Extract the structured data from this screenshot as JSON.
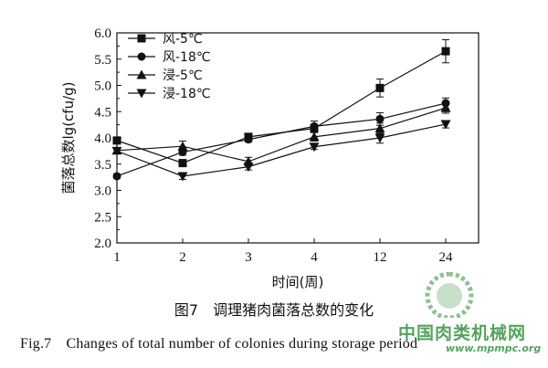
{
  "caption": {
    "cn": "图7　调理猪肉菌落总数的变化",
    "en": "Fig.7　Changes of total number of colonies during storage period"
  },
  "watermark": {
    "text": "中国肉类机械网",
    "url": "www.mpmpc.org",
    "logo_text": "MPMPC",
    "color": "#2f8f3a"
  },
  "chart_data": {
    "type": "line",
    "xlabel": "时间(周)",
    "ylabel": "菌落总数lg(cfu/g)",
    "categories": [
      "1",
      "2",
      "3",
      "4",
      "12",
      "24"
    ],
    "ylim": [
      2.0,
      6.0
    ],
    "yticks": [
      "2.0",
      "2.5",
      "3.0",
      "3.5",
      "4.0",
      "4.5",
      "5.0",
      "5.5",
      "6.0"
    ],
    "grid": false,
    "legend_position": "top-left",
    "series": [
      {
        "name": "风-5℃",
        "marker": "square",
        "values": [
          3.95,
          3.52,
          4.02,
          4.18,
          4.95,
          5.65
        ],
        "errors": [
          0.04,
          0.05,
          0.06,
          0.05,
          0.17,
          0.22
        ]
      },
      {
        "name": "风-18℃",
        "marker": "circle",
        "values": [
          3.27,
          3.73,
          3.97,
          4.22,
          4.36,
          4.66
        ],
        "errors": [
          0.04,
          0.06,
          0.05,
          0.1,
          0.12,
          0.1
        ]
      },
      {
        "name": "浸-5℃",
        "marker": "triangle-up",
        "values": [
          3.76,
          3.84,
          3.55,
          4.02,
          4.18,
          4.57
        ],
        "errors": [
          0.04,
          0.1,
          0.08,
          0.08,
          0.1,
          0.1
        ]
      },
      {
        "name": "浸-18℃",
        "marker": "triangle-down",
        "values": [
          3.75,
          3.27,
          3.45,
          3.83,
          4.0,
          4.26
        ],
        "errors": [
          0.04,
          0.06,
          0.06,
          0.05,
          0.1,
          0.07
        ]
      }
    ]
  }
}
